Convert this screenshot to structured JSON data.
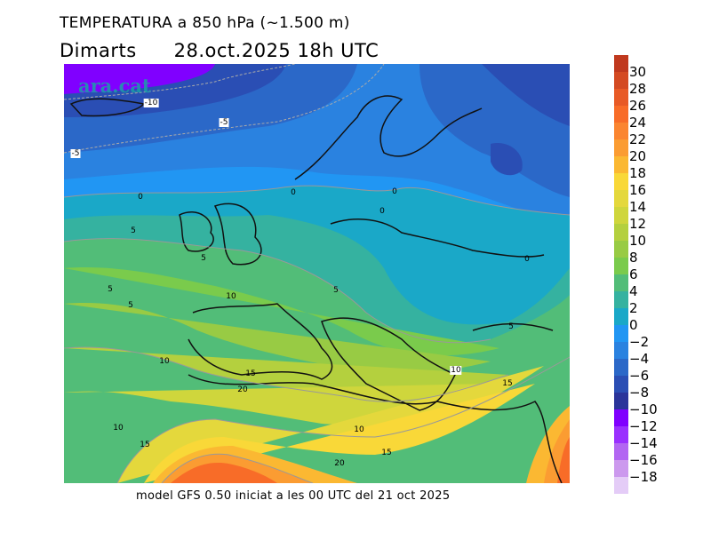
{
  "title": {
    "line1": "TEMPERATURA a 850 hPa (~1.500 m)",
    "day": "Dimarts",
    "datetime": "28.oct.2025 18h UTC"
  },
  "watermark": "ara.cat",
  "footer": "model GFS 0.50 iniciat a les 00 UTC del 21 oct 2025",
  "colorbar": {
    "labels": [
      "30",
      "28",
      "26",
      "24",
      "22",
      "20",
      "18",
      "16",
      "14",
      "12",
      "10",
      "8",
      "6",
      "4",
      "2",
      "0",
      "−2",
      "−4",
      "−6",
      "−8",
      "−10",
      "−12",
      "−14",
      "−16",
      "−18"
    ],
    "colors": [
      "#c0391e",
      "#d44a22",
      "#e85a26",
      "#f86c28",
      "#fb8530",
      "#fb9c32",
      "#fbb832",
      "#f9d838",
      "#e4d83c",
      "#cfd63c",
      "#b4d03e",
      "#98cb44",
      "#7acb4c",
      "#52bd78",
      "#35b2a0",
      "#1aa8c8",
      "#2196f3",
      "#2a82e0",
      "#2b68c8",
      "#2a4eb4",
      "#2a349a",
      "#8000ff",
      "#9a30ff",
      "#b266f2",
      "#cc99ee",
      "#e4ccf7"
    ]
  },
  "contour_labels": [
    "-10",
    "-5",
    "-5",
    "0",
    "0",
    "0",
    "0",
    "0",
    "5",
    "5",
    "5",
    "5",
    "10",
    "5",
    "5",
    "10",
    "15",
    "20",
    "10",
    "15",
    "10",
    "15",
    "10",
    "15",
    "20"
  ]
}
